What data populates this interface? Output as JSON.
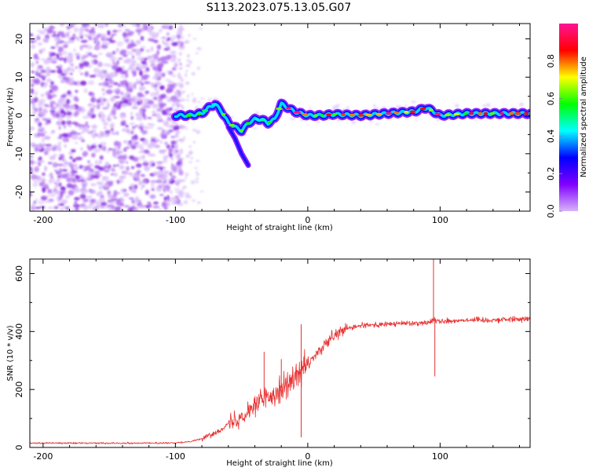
{
  "title": "S113.2023.075.13.05.G07",
  "chart_data": [
    {
      "type": "heatmap",
      "xlabel": "Height of straight line (km)",
      "ylabel": "Frequency (Hz)",
      "xlim": [
        -210,
        168
      ],
      "ylim": [
        -25,
        24
      ],
      "xticks": [
        -200,
        -100,
        0,
        100
      ],
      "yticks": [
        -20,
        -10,
        0,
        10,
        20
      ],
      "colorbar": {
        "label": "Normalized spectral amplitude",
        "range": [
          0,
          1
        ],
        "ticks": [
          0.0,
          0.2,
          0.4,
          0.6,
          0.8
        ],
        "colormap": [
          "#d8b4f8",
          "#8000ff",
          "#0000ff",
          "#00ffff",
          "#00ff00",
          "#ffff00",
          "#ff0000",
          "#ff1493"
        ]
      },
      "ridge": {
        "x": [
          -100,
          -90,
          -80,
          -75,
          -70,
          -65,
          -60,
          -55,
          -50,
          -45,
          -40,
          -35,
          -30,
          -25,
          -20,
          -15,
          -10,
          -5,
          0,
          10,
          20,
          40,
          60,
          80,
          90,
          100,
          120,
          140,
          168
        ],
        "y": [
          0,
          0,
          0.5,
          2,
          3,
          1,
          -2,
          -3,
          -4,
          -2,
          -1,
          -1,
          -2,
          -1,
          3,
          2,
          1,
          0.5,
          0,
          0,
          0.3,
          0,
          0.5,
          1,
          2,
          0,
          0.5,
          0.5,
          0.5
        ]
      },
      "side_branch": {
        "x": [
          -60,
          -55,
          -50,
          -45
        ],
        "y": [
          -3,
          -6,
          -10,
          -13
        ]
      }
    },
    {
      "type": "line",
      "xlabel": "Height of straight line (km)",
      "ylabel": "SNR (10 * v/v)",
      "xlim": [
        -210,
        168
      ],
      "ylim": [
        0,
        650
      ],
      "xticks": [
        -200,
        -100,
        0,
        100
      ],
      "yticks": [
        0,
        200,
        400,
        600
      ],
      "color": "#e83030",
      "x": [
        -210,
        -150,
        -100,
        -90,
        -80,
        -70,
        -60,
        -50,
        -40,
        -30,
        -20,
        -10,
        0,
        10,
        20,
        30,
        40,
        60,
        80,
        90,
        95,
        100,
        120,
        140,
        168
      ],
      "y": [
        15,
        15,
        15,
        20,
        30,
        50,
        80,
        110,
        150,
        175,
        205,
        235,
        285,
        340,
        385,
        410,
        420,
        425,
        430,
        430,
        440,
        435,
        440,
        440,
        445
      ],
      "spikes": [
        {
          "x": -33,
          "y": 330
        },
        {
          "x": -20,
          "y": 305
        },
        {
          "x": -5,
          "y": 425
        },
        {
          "x": -5,
          "y": 35
        },
        {
          "x": 95,
          "y": 650
        },
        {
          "x": 96,
          "y": 245
        }
      ]
    }
  ]
}
